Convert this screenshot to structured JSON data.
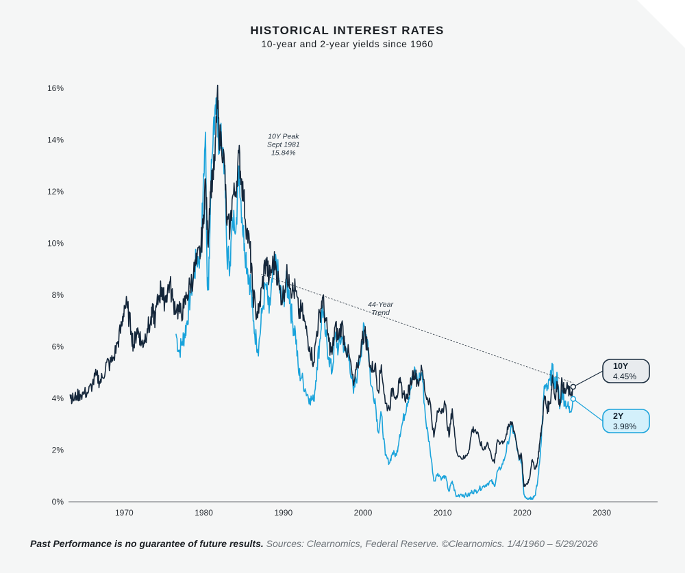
{
  "chart_data": {
    "type": "line",
    "title": "HISTORICAL INTEREST RATES",
    "subtitle": "10-year and 2-year yields since 1960",
    "xlabel": "",
    "ylabel": "",
    "xlim": [
      1963.0,
      2037.0
    ],
    "ylim": [
      0,
      16
    ],
    "x_ticks": [
      1970,
      1980,
      1990,
      2000,
      2010,
      2020,
      2030
    ],
    "x_tick_labels": [
      "1970",
      "1980",
      "1990",
      "2000",
      "2010",
      "2020",
      "2030"
    ],
    "y_ticks": [
      0,
      2,
      4,
      6,
      8,
      10,
      12,
      14,
      16
    ],
    "y_tick_labels": [
      "0%",
      "2%",
      "4%",
      "6%",
      "8%",
      "10%",
      "12%",
      "14%",
      "16%"
    ],
    "grid": false,
    "colors": {
      "ten_year": "#14263a",
      "two_year": "#1aa3db",
      "trend": "#3a4550"
    },
    "series": [
      {
        "name": "10Y",
        "color": "#14263a",
        "points": [
          [
            1963.2,
            4.15
          ],
          [
            1963.6,
            3.95
          ],
          [
            1964.0,
            4.1
          ],
          [
            1964.5,
            4.15
          ],
          [
            1965.0,
            4.2
          ],
          [
            1965.5,
            4.25
          ],
          [
            1966.0,
            4.55
          ],
          [
            1966.5,
            4.9
          ],
          [
            1966.9,
            4.65
          ],
          [
            1967.3,
            4.8
          ],
          [
            1967.8,
            5.4
          ],
          [
            1968.2,
            5.3
          ],
          [
            1968.7,
            5.6
          ],
          [
            1969.2,
            6.2
          ],
          [
            1969.7,
            6.8
          ],
          [
            1970.0,
            7.6
          ],
          [
            1970.4,
            7.5
          ],
          [
            1970.9,
            6.6
          ],
          [
            1971.2,
            6.0
          ],
          [
            1971.6,
            6.7
          ],
          [
            1971.9,
            6.5
          ],
          [
            1972.2,
            6.1
          ],
          [
            1972.5,
            6.25
          ],
          [
            1972.9,
            6.7
          ],
          [
            1973.3,
            6.9
          ],
          [
            1973.6,
            7.3
          ],
          [
            1973.9,
            7.1
          ],
          [
            1974.3,
            7.9
          ],
          [
            1974.7,
            8.3
          ],
          [
            1974.9,
            7.8
          ],
          [
            1975.3,
            8.0
          ],
          [
            1975.7,
            8.5
          ],
          [
            1976.1,
            7.8
          ],
          [
            1976.6,
            7.5
          ],
          [
            1977.0,
            7.3
          ],
          [
            1977.5,
            7.5
          ],
          [
            1977.9,
            8.0
          ],
          [
            1978.3,
            8.4
          ],
          [
            1978.7,
            8.8
          ],
          [
            1979.1,
            9.2
          ],
          [
            1979.6,
            9.8
          ],
          [
            1979.9,
            10.6
          ],
          [
            1980.2,
            12.5
          ],
          [
            1980.5,
            10.0
          ],
          [
            1980.8,
            12.0
          ],
          [
            1981.1,
            12.6
          ],
          [
            1981.4,
            13.2
          ],
          [
            1981.7,
            15.84
          ],
          [
            1981.9,
            14.2
          ],
          [
            1982.2,
            14.0
          ],
          [
            1982.6,
            13.0
          ],
          [
            1982.9,
            10.7
          ],
          [
            1983.3,
            10.6
          ],
          [
            1983.6,
            11.8
          ],
          [
            1984.0,
            12.0
          ],
          [
            1984.4,
            13.5
          ],
          [
            1984.7,
            12.5
          ],
          [
            1985.0,
            11.8
          ],
          [
            1985.4,
            10.5
          ],
          [
            1985.8,
            9.8
          ],
          [
            1986.1,
            8.3
          ],
          [
            1986.5,
            7.4
          ],
          [
            1986.9,
            7.3
          ],
          [
            1987.3,
            8.3
          ],
          [
            1987.8,
            9.4
          ],
          [
            1988.2,
            8.6
          ],
          [
            1988.6,
            9.1
          ],
          [
            1989.0,
            9.3
          ],
          [
            1989.5,
            8.2
          ],
          [
            1989.9,
            7.9
          ],
          [
            1990.3,
            8.6
          ],
          [
            1990.7,
            8.8
          ],
          [
            1991.1,
            8.1
          ],
          [
            1991.5,
            8.2
          ],
          [
            1991.9,
            7.3
          ],
          [
            1992.3,
            7.4
          ],
          [
            1992.8,
            6.7
          ],
          [
            1993.3,
            6.0
          ],
          [
            1993.8,
            5.4
          ],
          [
            1994.2,
            6.6
          ],
          [
            1994.6,
            7.3
          ],
          [
            1994.9,
            7.9
          ],
          [
            1995.3,
            7.0
          ],
          [
            1995.7,
            6.2
          ],
          [
            1996.1,
            5.7
          ],
          [
            1996.5,
            6.8
          ],
          [
            1996.9,
            6.3
          ],
          [
            1997.3,
            6.9
          ],
          [
            1997.8,
            6.0
          ],
          [
            1998.3,
            5.6
          ],
          [
            1998.8,
            4.5
          ],
          [
            1999.3,
            5.2
          ],
          [
            1999.9,
            6.3
          ],
          [
            2000.2,
            6.6
          ],
          [
            2000.6,
            5.9
          ],
          [
            2001.0,
            5.1
          ],
          [
            2001.5,
            5.3
          ],
          [
            2001.9,
            4.3
          ],
          [
            2002.3,
            5.3
          ],
          [
            2002.8,
            3.8
          ],
          [
            2003.3,
            3.6
          ],
          [
            2003.7,
            4.4
          ],
          [
            2004.2,
            4.1
          ],
          [
            2004.6,
            4.6
          ],
          [
            2005.0,
            4.2
          ],
          [
            2005.5,
            4.0
          ],
          [
            2005.9,
            4.5
          ],
          [
            2006.4,
            5.1
          ],
          [
            2006.9,
            4.6
          ],
          [
            2007.4,
            5.1
          ],
          [
            2007.9,
            4.1
          ],
          [
            2008.4,
            3.9
          ],
          [
            2008.9,
            2.5
          ],
          [
            2009.4,
            3.5
          ],
          [
            2009.9,
            3.6
          ],
          [
            2010.3,
            3.8
          ],
          [
            2010.8,
            2.5
          ],
          [
            2011.2,
            3.6
          ],
          [
            2011.7,
            2.0
          ],
          [
            2012.3,
            1.7
          ],
          [
            2012.8,
            1.7
          ],
          [
            2013.3,
            2.0
          ],
          [
            2013.7,
            2.8
          ],
          [
            2014.1,
            2.8
          ],
          [
            2014.6,
            2.4
          ],
          [
            2015.1,
            2.0
          ],
          [
            2015.6,
            2.3
          ],
          [
            2016.1,
            1.8
          ],
          [
            2016.5,
            1.5
          ],
          [
            2016.9,
            2.4
          ],
          [
            2017.3,
            2.3
          ],
          [
            2017.8,
            2.4
          ],
          [
            2018.2,
            2.8
          ],
          [
            2018.7,
            3.1
          ],
          [
            2019.1,
            2.6
          ],
          [
            2019.6,
            1.7
          ],
          [
            2019.9,
            1.8
          ],
          [
            2020.2,
            0.6
          ],
          [
            2020.6,
            0.7
          ],
          [
            2020.9,
            0.9
          ],
          [
            2021.2,
            1.6
          ],
          [
            2021.6,
            1.3
          ],
          [
            2021.9,
            1.5
          ],
          [
            2022.2,
            2.3
          ],
          [
            2022.5,
            3.0
          ],
          [
            2022.8,
            4.1
          ],
          [
            2023.1,
            3.6
          ],
          [
            2023.5,
            3.8
          ],
          [
            2023.8,
            4.9
          ],
          [
            2024.1,
            4.0
          ],
          [
            2024.4,
            4.6
          ],
          [
            2024.7,
            3.7
          ],
          [
            2025.0,
            4.7
          ],
          [
            2025.3,
            4.2
          ],
          [
            2025.7,
            4.4
          ],
          [
            2026.0,
            4.15
          ],
          [
            2026.4,
            4.45
          ]
        ]
      },
      {
        "name": "2Y",
        "color": "#1aa3db",
        "points": [
          [
            1976.5,
            6.5
          ],
          [
            1976.9,
            5.8
          ],
          [
            1977.3,
            6.2
          ],
          [
            1977.6,
            6.5
          ],
          [
            1977.9,
            7.0
          ],
          [
            1978.3,
            8.0
          ],
          [
            1978.7,
            8.7
          ],
          [
            1979.1,
            9.4
          ],
          [
            1979.6,
            9.5
          ],
          [
            1979.9,
            11.8
          ],
          [
            1980.2,
            14.3
          ],
          [
            1980.4,
            9.0
          ],
          [
            1980.6,
            8.2
          ],
          [
            1980.9,
            12.5
          ],
          [
            1981.2,
            14.5
          ],
          [
            1981.5,
            15.0
          ],
          [
            1981.7,
            15.3
          ],
          [
            1981.9,
            13.5
          ],
          [
            1982.2,
            14.2
          ],
          [
            1982.6,
            13.0
          ],
          [
            1982.9,
            9.5
          ],
          [
            1983.3,
            9.3
          ],
          [
            1983.6,
            10.8
          ],
          [
            1984.1,
            11.0
          ],
          [
            1984.4,
            13.0
          ],
          [
            1984.8,
            11.0
          ],
          [
            1985.1,
            10.0
          ],
          [
            1985.5,
            9.0
          ],
          [
            1985.9,
            8.4
          ],
          [
            1986.2,
            7.0
          ],
          [
            1986.6,
            6.2
          ],
          [
            1986.9,
            6.0
          ],
          [
            1987.3,
            7.3
          ],
          [
            1987.8,
            8.4
          ],
          [
            1988.2,
            7.3
          ],
          [
            1988.6,
            8.5
          ],
          [
            1989.1,
            9.3
          ],
          [
            1989.5,
            8.3
          ],
          [
            1989.9,
            7.7
          ],
          [
            1990.3,
            8.4
          ],
          [
            1990.7,
            8.2
          ],
          [
            1991.1,
            7.0
          ],
          [
            1991.5,
            6.6
          ],
          [
            1991.9,
            5.0
          ],
          [
            1992.3,
            4.8
          ],
          [
            1992.8,
            4.3
          ],
          [
            1993.3,
            4.0
          ],
          [
            1993.8,
            3.9
          ],
          [
            1994.2,
            5.2
          ],
          [
            1994.6,
            6.3
          ],
          [
            1994.9,
            7.6
          ],
          [
            1995.3,
            6.4
          ],
          [
            1995.7,
            5.6
          ],
          [
            1996.1,
            5.0
          ],
          [
            1996.5,
            6.4
          ],
          [
            1996.9,
            5.9
          ],
          [
            1997.3,
            6.4
          ],
          [
            1997.8,
            5.8
          ],
          [
            1998.3,
            5.5
          ],
          [
            1998.8,
            4.2
          ],
          [
            1999.3,
            5.0
          ],
          [
            1999.9,
            6.2
          ],
          [
            2000.2,
            6.8
          ],
          [
            2000.6,
            6.2
          ],
          [
            2001.0,
            4.5
          ],
          [
            2001.5,
            4.0
          ],
          [
            2001.9,
            2.7
          ],
          [
            2002.3,
            3.4
          ],
          [
            2002.8,
            1.8
          ],
          [
            2003.3,
            1.5
          ],
          [
            2003.7,
            1.9
          ],
          [
            2004.2,
            1.8
          ],
          [
            2004.6,
            2.6
          ],
          [
            2005.0,
            3.1
          ],
          [
            2005.5,
            3.8
          ],
          [
            2005.9,
            4.3
          ],
          [
            2006.4,
            5.0
          ],
          [
            2006.9,
            4.7
          ],
          [
            2007.4,
            5.0
          ],
          [
            2007.9,
            3.1
          ],
          [
            2008.4,
            2.1
          ],
          [
            2008.9,
            0.8
          ],
          [
            2009.4,
            1.1
          ],
          [
            2009.9,
            0.9
          ],
          [
            2010.3,
            1.0
          ],
          [
            2010.8,
            0.4
          ],
          [
            2011.2,
            0.8
          ],
          [
            2011.7,
            0.2
          ],
          [
            2012.3,
            0.3
          ],
          [
            2012.8,
            0.25
          ],
          [
            2013.3,
            0.25
          ],
          [
            2013.7,
            0.4
          ],
          [
            2014.1,
            0.4
          ],
          [
            2014.6,
            0.5
          ],
          [
            2015.1,
            0.6
          ],
          [
            2015.6,
            0.7
          ],
          [
            2016.1,
            0.8
          ],
          [
            2016.5,
            0.6
          ],
          [
            2016.9,
            1.2
          ],
          [
            2017.3,
            1.3
          ],
          [
            2017.8,
            1.7
          ],
          [
            2018.2,
            2.3
          ],
          [
            2018.7,
            2.9
          ],
          [
            2019.1,
            2.5
          ],
          [
            2019.6,
            1.6
          ],
          [
            2019.9,
            1.6
          ],
          [
            2020.2,
            0.3
          ],
          [
            2020.6,
            0.15
          ],
          [
            2020.9,
            0.15
          ],
          [
            2021.2,
            0.15
          ],
          [
            2021.6,
            0.25
          ],
          [
            2021.9,
            0.7
          ],
          [
            2022.2,
            1.6
          ],
          [
            2022.5,
            3.0
          ],
          [
            2022.8,
            4.5
          ],
          [
            2023.1,
            4.3
          ],
          [
            2023.5,
            4.7
          ],
          [
            2023.8,
            5.1
          ],
          [
            2024.1,
            4.4
          ],
          [
            2024.4,
            4.9
          ],
          [
            2024.7,
            3.6
          ],
          [
            2025.0,
            4.3
          ],
          [
            2025.3,
            3.9
          ],
          [
            2025.7,
            3.7
          ],
          [
            2026.0,
            3.5
          ],
          [
            2026.4,
            3.98
          ]
        ]
      }
    ],
    "trend_line": {
      "label_line1": "44-Year",
      "label_line2": "Trend",
      "start": [
        1987.2,
        8.8
      ],
      "end": [
        2026.4,
        4.6
      ]
    },
    "annotations": [
      {
        "lines": [
          "10Y Peak",
          "Sept 1981",
          "15.84%"
        ],
        "x": 1981.7,
        "y": 15.84
      }
    ],
    "end_labels": [
      {
        "name": "10Y",
        "value": "4.45%",
        "series": 0
      },
      {
        "name": "2Y",
        "value": "3.98%",
        "series": 1
      }
    ]
  },
  "footer": {
    "disclaimer": "Past Performance is no guarantee of future results.",
    "sources": "Sources: Clearnomics, Federal Reserve. ©Clearnomics. 1/4/1960 – 5/29/2026"
  }
}
